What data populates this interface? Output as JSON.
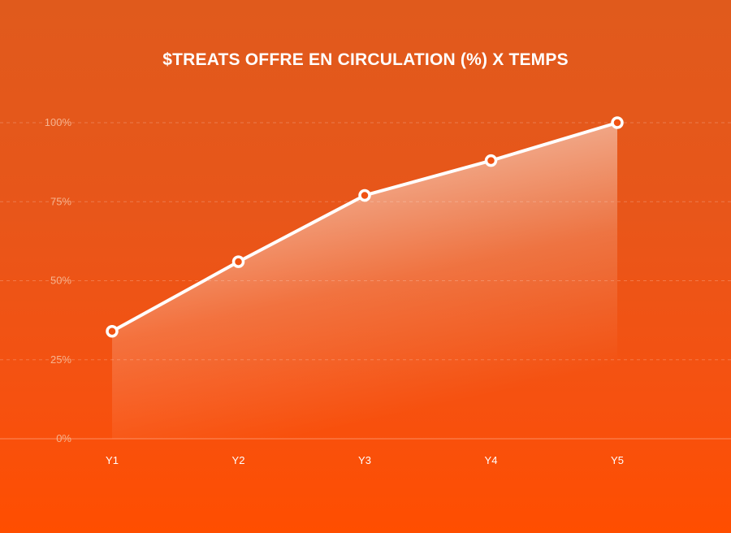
{
  "chart_data": {
    "type": "area",
    "title": "$TREATS OFFRE EN CIRCULATION (%) X TEMPS",
    "categories": [
      "Y1",
      "Y2",
      "Y3",
      "Y4",
      "Y5"
    ],
    "values": [
      34,
      56,
      77,
      88,
      100
    ],
    "yticks": [
      "0%",
      "25%",
      "50%",
      "75%",
      "100%"
    ],
    "ylim": [
      0,
      100
    ],
    "grid": true,
    "line_color": "#FFFFFF",
    "fill_color": "#FFFFFF",
    "background_color": "#F05212"
  }
}
